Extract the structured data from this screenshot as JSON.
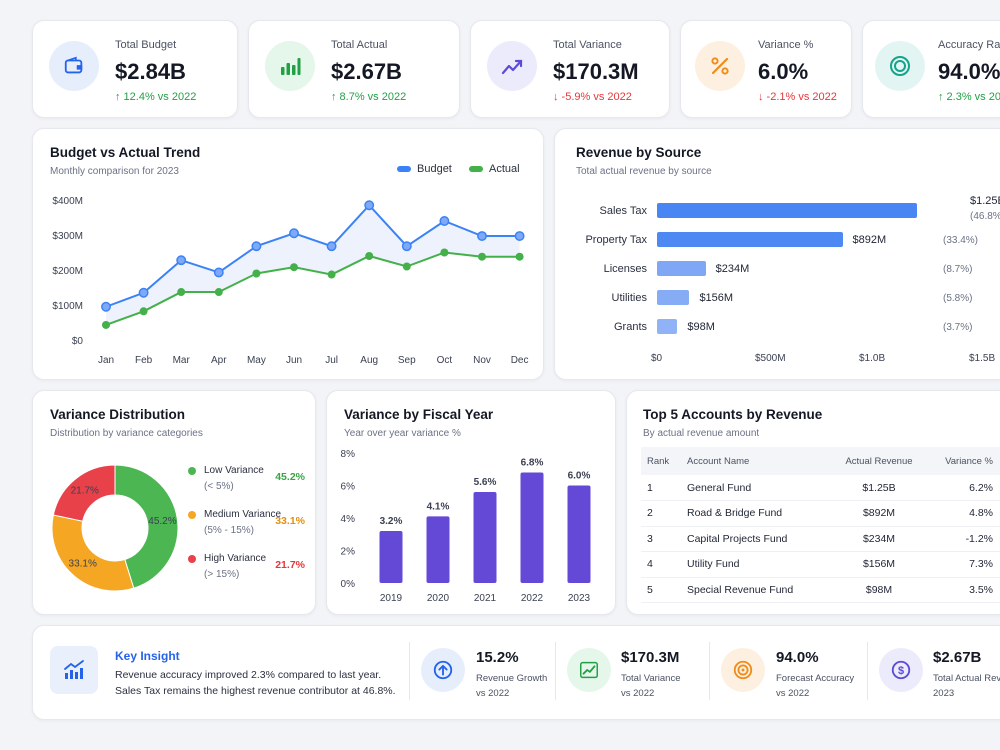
{
  "kpis": [
    {
      "label": "Total Budget",
      "value": "$2.84B",
      "delta": "↑ 12.4% vs 2022",
      "trend": "up",
      "icon": "wallet-icon",
      "icon_bg": "#e6eefc",
      "icon_color": "#2563eb"
    },
    {
      "label": "Total Actual",
      "value": "$2.67B",
      "delta": "↑ 8.7% vs 2022",
      "trend": "up",
      "icon": "bar-chart-icon",
      "icon_bg": "#e5f6ea",
      "icon_color": "#22a046"
    },
    {
      "label": "Total Variance",
      "value": "$170.3M",
      "delta": "↓ -5.9% vs 2022",
      "trend": "down",
      "icon": "trend-line-icon",
      "icon_bg": "#ecebfb",
      "icon_color": "#5b4bd6"
    },
    {
      "label": "Variance %",
      "value": "6.0%",
      "delta": "↓ -2.1% vs 2022",
      "trend": "down",
      "icon": "percent-icon",
      "icon_bg": "#fdf0e0",
      "icon_color": "#f08c1a"
    },
    {
      "label": "Accuracy Ra",
      "value": "94.0%",
      "delta": "↑ 2.3% vs 20",
      "trend": "up",
      "icon": "target-icon",
      "icon_bg": "#e3f5f2",
      "icon_color": "#14a38b"
    }
  ],
  "trend": {
    "title": "Budget vs Actual Trend",
    "subtitle": "Monthly comparison for 2023",
    "legend_budget": "Budget",
    "legend_actual": "Actual"
  },
  "revenue": {
    "title": "Revenue by Source",
    "subtitle": "Total actual revenue by source",
    "x_ticks": [
      "$0",
      "$500M",
      "$1.0B",
      "$1.5B"
    ]
  },
  "variance_dist": {
    "title": "Variance Distribution",
    "subtitle": "Distribution by variance categories",
    "items": [
      {
        "name": "Low Variance",
        "range": "(< 5%)",
        "pct": "45.2%",
        "color": "#4cb652"
      },
      {
        "name": "Medium Variance",
        "range": "(5% - 15%)",
        "pct": "33.1%",
        "color": "#f5a623"
      },
      {
        "name": "High Variance",
        "range": "(> 15%)",
        "pct": "21.7%",
        "color": "#e9414a"
      }
    ]
  },
  "fiscal": {
    "title": "Variance by Fiscal Year",
    "subtitle": "Year over year variance %"
  },
  "accounts": {
    "title": "Top 5 Accounts by Revenue",
    "subtitle": "By actual revenue amount",
    "headers": [
      "Rank",
      "Account Name",
      "Actual Revenue",
      "Variance %"
    ],
    "rows": [
      {
        "rank": "1",
        "name": "General Fund",
        "actual": "$1.25B",
        "variance": "6.2%",
        "trend": "up"
      },
      {
        "rank": "2",
        "name": "Road & Bridge Fund",
        "actual": "$892M",
        "variance": "4.8%",
        "trend": "up"
      },
      {
        "rank": "3",
        "name": "Capital Projects Fund",
        "actual": "$234M",
        "variance": "-1.2%",
        "trend": "down"
      },
      {
        "rank": "4",
        "name": "Utility Fund",
        "actual": "$156M",
        "variance": "7.3%",
        "trend": "up"
      },
      {
        "rank": "5",
        "name": "Special Revenue Fund",
        "actual": "$98M",
        "variance": "3.5%",
        "trend": "up"
      }
    ]
  },
  "insight": {
    "title": "Key Insight",
    "line1": "Revenue accuracy improved 2.3% compared to last year.",
    "line2": "Sales Tax remains the highest revenue contributor at 46.8%."
  },
  "summary": [
    {
      "value": "15.2%",
      "label": "Revenue Growth",
      "sub": "vs 2022",
      "icon": "arrow-up-circle-icon",
      "icon_bg": "#e6eefc",
      "icon_color": "#2563eb"
    },
    {
      "value": "$170.3M",
      "label": "Total Variance",
      "sub": "vs 2022",
      "icon": "trend-line-icon",
      "icon_bg": "#e5f6ea",
      "icon_color": "#22a046"
    },
    {
      "value": "94.0%",
      "label": "Forecast Accuracy",
      "sub": "vs 2022",
      "icon": "target-icon",
      "icon_bg": "#fdf0e0",
      "icon_color": "#f08c1a"
    },
    {
      "value": "$2.67B",
      "label": "Total Actual Rev",
      "sub": "2023",
      "icon": "dollar-circle-icon",
      "icon_bg": "#ecebfb",
      "icon_color": "#5b4bd6"
    }
  ],
  "colors": {
    "budget": "#3b82f6",
    "actual": "#43b04a",
    "bar": "#5b8ff5",
    "fiscal_bar": "#6448d6"
  },
  "chart_data": [
    {
      "type": "line",
      "title": "Budget vs Actual Trend",
      "categories": [
        "Jan",
        "Feb",
        "Mar",
        "Apr",
        "May",
        "Jun",
        "Jul",
        "Aug",
        "Sep",
        "Oct",
        "Nov",
        "Dec"
      ],
      "series": [
        {
          "name": "Budget",
          "values": [
            95,
            135,
            228,
            193,
            268,
            305,
            268,
            385,
            268,
            340,
            297,
            297
          ]
        },
        {
          "name": "Actual",
          "values": [
            43,
            82,
            137,
            137,
            190,
            208,
            187,
            240,
            210,
            250,
            238,
            238
          ]
        }
      ],
      "y_ticks": [
        "$0",
        "$100M",
        "$200M",
        "$300M",
        "$400M"
      ],
      "ylim": [
        0,
        400
      ],
      "grid": false,
      "legend": "top-right"
    },
    {
      "type": "bar",
      "orientation": "horizontal",
      "title": "Revenue by Source",
      "categories": [
        "Sales Tax",
        "Property Tax",
        "Licenses",
        "Utilities",
        "Grants"
      ],
      "values": [
        1250,
        892,
        234,
        156,
        98
      ],
      "value_labels": [
        "$1.25B",
        "$892M",
        "$234M",
        "$156M",
        "$98M"
      ],
      "share_labels": [
        "(46.8%)",
        "(33.4%)",
        "(8.7%)",
        "(5.8%)",
        "(3.7%)"
      ],
      "xlim": [
        0,
        1500
      ]
    },
    {
      "type": "pie",
      "title": "Variance Distribution",
      "categories": [
        "Low Variance",
        "Medium Variance",
        "High Variance"
      ],
      "values": [
        45.2,
        33.1,
        21.7
      ]
    },
    {
      "type": "bar",
      "title": "Variance by Fiscal Year",
      "categories": [
        "2019",
        "2020",
        "2021",
        "2022",
        "2023"
      ],
      "values": [
        3.2,
        4.1,
        5.6,
        6.8,
        6.0
      ],
      "value_labels": [
        "3.2%",
        "4.1%",
        "5.6%",
        "6.8%",
        "6.0%"
      ],
      "y_ticks": [
        "0%",
        "2%",
        "4%",
        "6%",
        "8%"
      ],
      "ylim": [
        0,
        8
      ]
    }
  ]
}
